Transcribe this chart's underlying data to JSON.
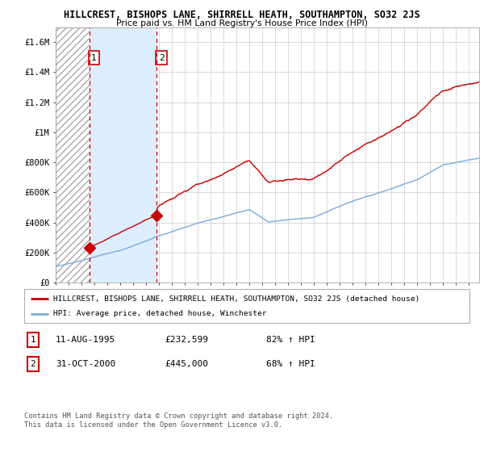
{
  "title": "HILLCREST, BISHOPS LANE, SHIRRELL HEATH, SOUTHAMPTON, SO32 2JS",
  "subtitle": "Price paid vs. HM Land Registry's House Price Index (HPI)",
  "ylabel_ticks": [
    "£0",
    "£200K",
    "£400K",
    "£600K",
    "£800K",
    "£1M",
    "£1.2M",
    "£1.4M",
    "£1.6M"
  ],
  "ytick_values": [
    0,
    200000,
    400000,
    600000,
    800000,
    1000000,
    1200000,
    1400000,
    1600000
  ],
  "ylim": [
    0,
    1700000
  ],
  "xlim_start": 1993.0,
  "xlim_end": 2025.8,
  "sale1_year": 1995.61,
  "sale1_price": 232599,
  "sale2_year": 2000.83,
  "sale2_price": 445000,
  "sale1_date": "11-AUG-1995",
  "sale1_text": "£232,599",
  "sale1_hpi": "82% ↑ HPI",
  "sale2_date": "31-OCT-2000",
  "sale2_text": "£445,000",
  "sale2_hpi": "68% ↑ HPI",
  "line_color_red": "#cc0000",
  "line_color_blue": "#7aabdc",
  "hatch_color": "#bbbbbb",
  "blue_span_color": "#ddeeff",
  "legend_label_red": "HILLCREST, BISHOPS LANE, SHIRRELL HEATH, SOUTHAMPTON, SO32 2JS (detached house)",
  "legend_label_blue": "HPI: Average price, detached house, Winchester",
  "footer1": "Contains HM Land Registry data © Crown copyright and database right 2024.",
  "footer2": "This data is licensed under the Open Government Licence v3.0.",
  "background_color": "#ffffff",
  "grid_color": "#cccccc"
}
